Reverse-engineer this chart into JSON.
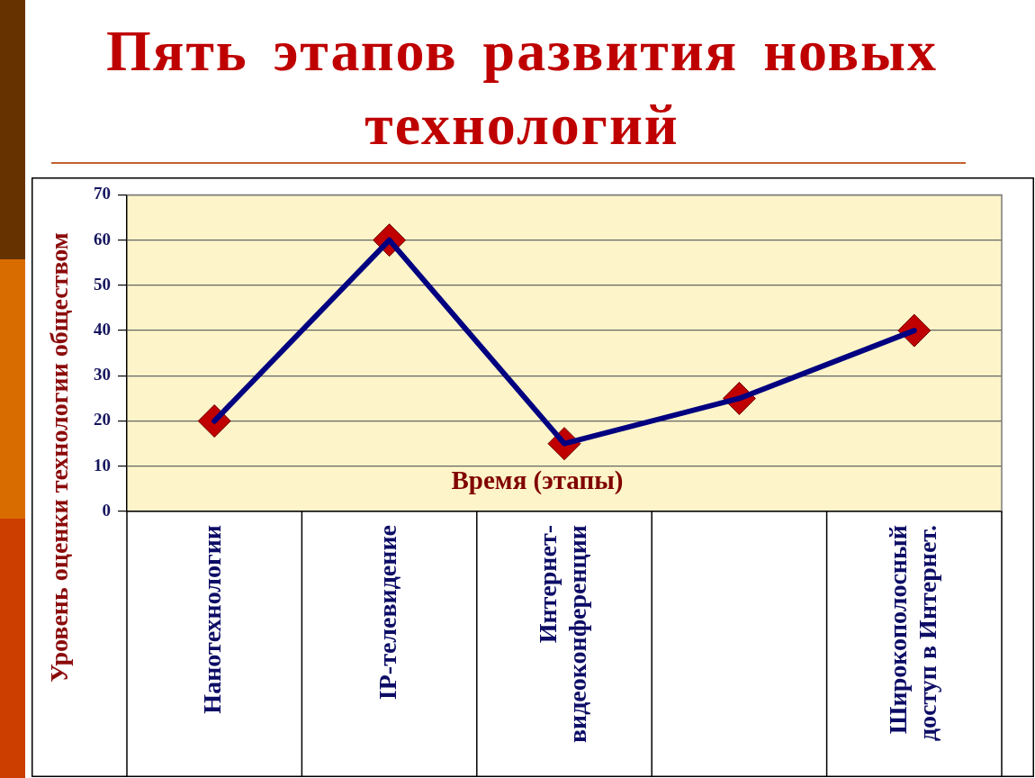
{
  "chart_data": {
    "type": "line",
    "title": "Пять этапов развития новых технологий",
    "xlabel": "Время (этапы)",
    "ylabel": "Уровень оценки технологии обществом",
    "categories": [
      "Нанотехнологии",
      "IP-телевидение",
      "Интернет-видеоконференции",
      null,
      "Широкополосный доступ в Интернет."
    ],
    "series": [
      {
        "color": "#000080",
        "colors": [
          "#c00000",
          "#c00000",
          "#c00000",
          "#c00000",
          "#c00000"
        ],
        "values": [
          20,
          60,
          15,
          25,
          40
        ]
      }
    ],
    "ylim": [
      0,
      70
    ],
    "yticks": [
      0,
      10,
      20,
      30,
      40,
      50,
      60,
      70
    ],
    "grid": "y",
    "legend": false,
    "marker": "diamond",
    "line_style": "solid"
  }
}
